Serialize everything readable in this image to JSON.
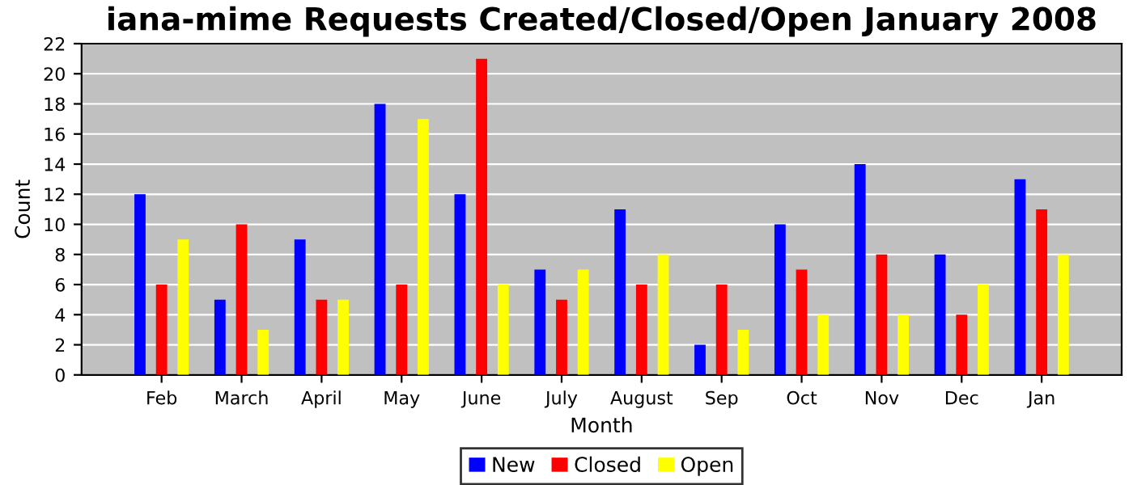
{
  "chart_data": {
    "type": "bar",
    "title": "iana-mime Requests Created/Closed/Open January 2008",
    "xlabel": "Month",
    "ylabel": "Count",
    "categories": [
      "Feb",
      "March",
      "April",
      "May",
      "June",
      "July",
      "August",
      "Sep",
      "Oct",
      "Nov",
      "Dec",
      "Jan"
    ],
    "series": [
      {
        "name": "New",
        "color": "#0000ff",
        "values": [
          12,
          5,
          9,
          18,
          12,
          7,
          11,
          2,
          10,
          14,
          8,
          13
        ]
      },
      {
        "name": "Closed",
        "color": "#ff0000",
        "values": [
          6,
          10,
          5,
          6,
          21,
          5,
          6,
          6,
          7,
          8,
          4,
          11
        ]
      },
      {
        "name": "Open",
        "color": "#ffff00",
        "values": [
          9,
          3,
          5,
          17,
          6,
          7,
          8,
          3,
          4,
          4,
          6,
          8
        ]
      }
    ],
    "ylim": [
      0,
      22
    ],
    "yticks": [
      0,
      2,
      4,
      6,
      8,
      10,
      12,
      14,
      16,
      18,
      20,
      22
    ],
    "grid": "y",
    "legend": "bottom"
  }
}
